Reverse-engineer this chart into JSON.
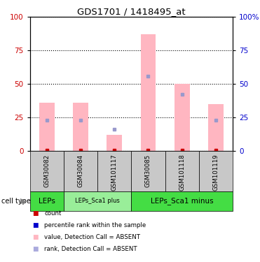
{
  "title": "GDS1701 / 1418495_at",
  "samples": [
    "GSM30082",
    "GSM30084",
    "GSM101117",
    "GSM30085",
    "GSM101118",
    "GSM101119"
  ],
  "pink_bar_heights": [
    36,
    36,
    12,
    87,
    50,
    35
  ],
  "red_dot_values": [
    0.5,
    0.5,
    0.5,
    0.5,
    0.5,
    0.5
  ],
  "blue_dot_values": [
    23,
    23,
    16,
    56,
    42,
    23
  ],
  "cell_type_groups": [
    {
      "label": "LEPs",
      "start": 0,
      "end": 1,
      "fontsize": 7.5,
      "bold": false
    },
    {
      "label": "LEPs_Sca1 plus",
      "start": 1,
      "end": 3,
      "fontsize": 6,
      "bold": false
    },
    {
      "label": "LEPs_Sca1 minus",
      "start": 3,
      "end": 6,
      "fontsize": 7.5,
      "bold": false
    }
  ],
  "ylim": [
    0,
    100
  ],
  "yticks": [
    0,
    25,
    50,
    75,
    100
  ],
  "pink_color": "#FFB6C1",
  "red_color": "#CC0000",
  "blue_color": "#0000CC",
  "light_blue_color": "#9999CC",
  "green_bright": "#44DD44",
  "green_light": "#99EE99",
  "gray_color": "#C8C8C8",
  "bg_color": "#FFFFFF",
  "legend_colors": [
    "#CC0000",
    "#0000CC",
    "#FFB6C1",
    "#AAAADD"
  ],
  "legend_labels": [
    "count",
    "percentile rank within the sample",
    "value, Detection Call = ABSENT",
    "rank, Detection Call = ABSENT"
  ]
}
